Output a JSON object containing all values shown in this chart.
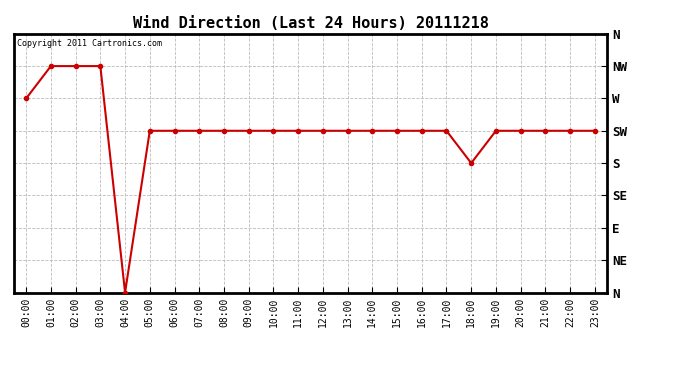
{
  "title": "Wind Direction (Last 24 Hours) 20111218",
  "copyright_text": "Copyright 2011 Cartronics.com",
  "x_labels": [
    "00:00",
    "01:00",
    "02:00",
    "03:00",
    "04:00",
    "05:00",
    "06:00",
    "07:00",
    "08:00",
    "09:00",
    "10:00",
    "11:00",
    "12:00",
    "13:00",
    "14:00",
    "15:00",
    "16:00",
    "17:00",
    "18:00",
    "19:00",
    "20:00",
    "21:00",
    "22:00",
    "23:00"
  ],
  "y_ticks_values": [
    360,
    315,
    270,
    225,
    180,
    135,
    90,
    45,
    0
  ],
  "y_ticks_labels": [
    "N",
    "NW",
    "W",
    "SW",
    "S",
    "SE",
    "E",
    "NE",
    "N"
  ],
  "y_min": 0,
  "y_max": 360,
  "wind_data": [
    270,
    315,
    315,
    315,
    0,
    225,
    225,
    225,
    225,
    225,
    225,
    225,
    225,
    225,
    225,
    225,
    225,
    225,
    180,
    225,
    225,
    225,
    225,
    225
  ],
  "line_color": "#cc0000",
  "marker": "o",
  "marker_size": 3,
  "line_width": 1.5,
  "background_color": "#ffffff",
  "plot_bg_color": "#ffffff",
  "grid_color": "#bbbbbb",
  "grid_style": "--",
  "title_fontsize": 11,
  "copyright_fontsize": 6,
  "tick_fontsize": 7,
  "ytick_fontsize": 9
}
